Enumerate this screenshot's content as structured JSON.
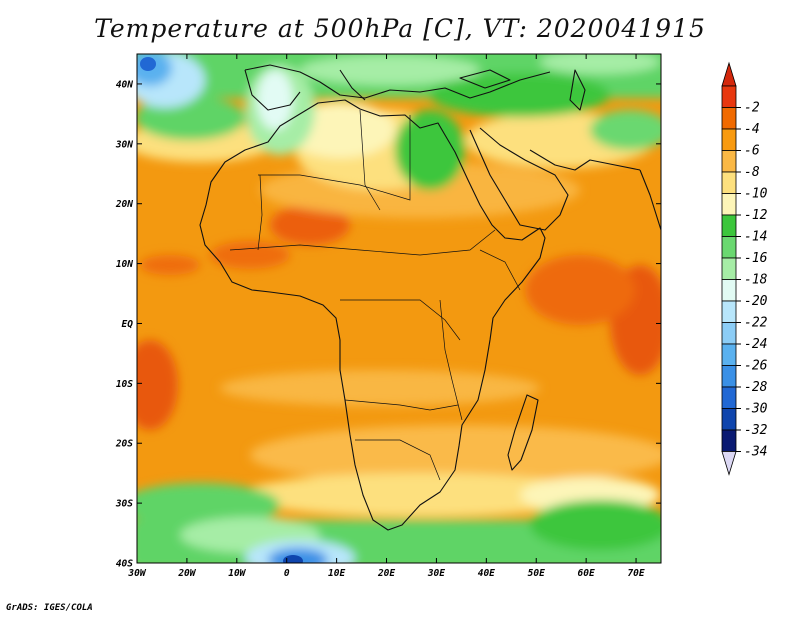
{
  "title": "Temperature at 500hPa [C], VT: 2020041915",
  "footer": "GrADS: IGES/COLA",
  "map": {
    "lon_range": [
      -30,
      75
    ],
    "lat_range": [
      -40,
      45
    ],
    "lat_ticks": [
      {
        "value": 40,
        "label": "40N"
      },
      {
        "value": 30,
        "label": "30N"
      },
      {
        "value": 20,
        "label": "20N"
      },
      {
        "value": 10,
        "label": "10N"
      },
      {
        "value": 0,
        "label": "EQ"
      },
      {
        "value": -10,
        "label": "10S"
      },
      {
        "value": -20,
        "label": "20S"
      },
      {
        "value": -30,
        "label": "30S"
      },
      {
        "value": -40,
        "label": "40S"
      }
    ],
    "lon_ticks": [
      {
        "value": -30,
        "label": "30W"
      },
      {
        "value": -20,
        "label": "20W"
      },
      {
        "value": -10,
        "label": "10W"
      },
      {
        "value": 0,
        "label": "0"
      },
      {
        "value": 10,
        "label": "10E"
      },
      {
        "value": 20,
        "label": "20E"
      },
      {
        "value": 30,
        "label": "30E"
      },
      {
        "value": 40,
        "label": "40E"
      },
      {
        "value": 50,
        "label": "50E"
      },
      {
        "value": 60,
        "label": "60E"
      },
      {
        "value": 70,
        "label": "70E"
      }
    ]
  },
  "colorbar": {
    "unit": "C",
    "levels": [
      {
        "label": "-2",
        "color": "#e8380f"
      },
      {
        "label": "-4",
        "color": "#f06a00"
      },
      {
        "label": "-6",
        "color": "#f89a10"
      },
      {
        "label": "-8",
        "color": "#fab845"
      },
      {
        "label": "-10",
        "color": "#fde07e"
      },
      {
        "label": "-12",
        "color": "#fdf5b8"
      },
      {
        "label": "-14",
        "color": "#3cc63c"
      },
      {
        "label": "-16",
        "color": "#6ad870"
      },
      {
        "label": "-18",
        "color": "#a6eda6"
      },
      {
        "label": "-20",
        "color": "#e2fbf4"
      },
      {
        "label": "-22",
        "color": "#b8e6fb"
      },
      {
        "label": "-24",
        "color": "#8ccdf6"
      },
      {
        "label": "-26",
        "color": "#5ab1ef"
      },
      {
        "label": "-28",
        "color": "#3a90e6"
      },
      {
        "label": "-30",
        "color": "#2168d4"
      },
      {
        "label": "-32",
        "color": "#0f45ad"
      },
      {
        "label": "-34",
        "color": "#0a1a72"
      }
    ],
    "top_cap_color": "#d4280c",
    "bottom_cap_color": "#dcd8f4"
  },
  "field_colors": {
    "deep_orange": "#f08a00",
    "mid_orange": "#f6a11e",
    "light_orange": "#faba48",
    "yellow": "#fde07e",
    "pale_yellow": "#fdf5b8",
    "green": "#3cc63c",
    "light_green": "#6ad870",
    "pale_green": "#a6eda6",
    "pale_cyan": "#e2fbf4",
    "light_blue": "#8ccdf6",
    "blue": "#3a90e6",
    "navy": "#0f45ad",
    "red_orange": "#e8580f"
  }
}
